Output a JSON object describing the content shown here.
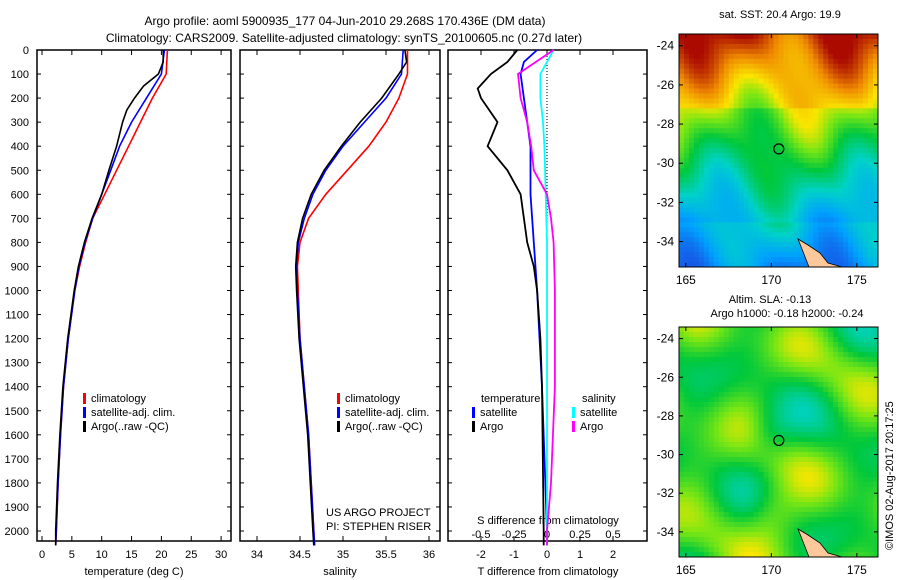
{
  "title_line1": "Argo profile: aoml 5900935_177 04-Jun-2010 29.268S 170.436E (DM data)",
  "title_line2": "Climatology: CARS2009. Satellite-adjusted climatology: synTS_20100605.nc (0.27d later)",
  "colors": {
    "clim": "#ff0000",
    "sat": "#0000ff",
    "argo": "#000000",
    "sal_sat": "#00ffff",
    "sal_argo": "#ff00ff"
  },
  "chart_data": [
    {
      "type": "line",
      "name": "temperature",
      "xlabel": "temperature (deg C)",
      "ylabel": "depth",
      "xlim": [
        -1,
        31
      ],
      "ylim": [
        2070,
        0
      ],
      "xticks": [
        "0",
        "5",
        "10",
        "15",
        "20",
        "25",
        "30"
      ],
      "yticks": [
        "0",
        "100",
        "200",
        "300",
        "400",
        "500",
        "600",
        "700",
        "800",
        "900",
        "1000",
        "1100",
        "1200",
        "1300",
        "1400",
        "1500",
        "1600",
        "1700",
        "1800",
        "1900",
        "2000"
      ],
      "legend": [
        "climatology",
        "satellite-adj. clim.",
        "Argo(..raw -QC)"
      ],
      "series": [
        {
          "name": "climatology",
          "depth": [
            0,
            100,
            200,
            300,
            400,
            500,
            600,
            700,
            800,
            900,
            1000,
            1200,
            1400,
            1600,
            1800,
            2000,
            2060
          ],
          "values": [
            21,
            20.8,
            18.5,
            16.5,
            14.5,
            12.5,
            10.5,
            8.5,
            7.3,
            6.3,
            5.5,
            4.4,
            3.6,
            3.1,
            2.7,
            2.4,
            2.3
          ]
        },
        {
          "name": "satellite-adj. clim.",
          "depth": [
            0,
            100,
            200,
            300,
            400,
            500,
            600,
            700,
            800,
            900,
            1000,
            1200,
            1400,
            1600,
            1800,
            2000,
            2060
          ],
          "values": [
            20.5,
            20,
            17.5,
            15,
            13,
            11.5,
            10,
            8.5,
            7.2,
            6.2,
            5.5,
            4.4,
            3.6,
            3.1,
            2.7,
            2.4,
            2.3
          ]
        },
        {
          "name": "Argo",
          "depth": [
            0,
            50,
            100,
            150,
            200,
            250,
            300,
            400,
            500,
            600,
            700,
            800,
            900,
            1000,
            1200,
            1400,
            1600,
            1800,
            2000,
            2060
          ],
          "values": [
            20.3,
            20.3,
            19.5,
            17,
            15.5,
            14.2,
            13.5,
            12.5,
            11.2,
            10,
            8.4,
            7.1,
            6.1,
            5.4,
            4.3,
            3.5,
            3.0,
            2.6,
            2.3,
            2.3
          ]
        }
      ]
    },
    {
      "type": "line",
      "name": "salinity",
      "xlabel": "salinity",
      "xlim": [
        33.8,
        36.1
      ],
      "ylim": [
        2070,
        0
      ],
      "xticks": [
        "34",
        "34.5",
        "35",
        "35.5",
        "36"
      ],
      "legend": [
        "climatology",
        "satellite-adj. clim.",
        "Argo(..raw -QC)"
      ],
      "annotation": [
        "US ARGO PROJECT",
        "PI: STEPHEN RISER"
      ],
      "series": [
        {
          "name": "climatology",
          "depth": [
            0,
            100,
            200,
            300,
            400,
            500,
            600,
            700,
            800,
            900,
            1000,
            1200,
            1400,
            1600,
            1800,
            2000,
            2060
          ],
          "values": [
            35.75,
            35.75,
            35.65,
            35.5,
            35.3,
            35.05,
            34.8,
            34.6,
            34.5,
            34.47,
            34.48,
            34.5,
            34.55,
            34.6,
            34.63,
            34.66,
            34.67
          ]
        },
        {
          "name": "satellite-adj. clim.",
          "depth": [
            0,
            100,
            200,
            300,
            400,
            500,
            600,
            700,
            800,
            900,
            1000,
            1200,
            1400,
            1600,
            1800,
            2000,
            2060
          ],
          "values": [
            35.7,
            35.68,
            35.5,
            35.25,
            35.0,
            34.8,
            34.65,
            34.55,
            34.48,
            34.46,
            34.47,
            34.5,
            34.55,
            34.6,
            34.63,
            34.66,
            34.67
          ]
        },
        {
          "name": "Argo",
          "depth": [
            0,
            50,
            100,
            200,
            300,
            400,
            500,
            600,
            700,
            800,
            900,
            1000,
            1200,
            1400,
            1600,
            1800,
            2000,
            2060
          ],
          "values": [
            35.72,
            35.74,
            35.65,
            35.45,
            35.2,
            34.98,
            34.78,
            34.63,
            34.53,
            34.47,
            34.45,
            34.46,
            34.49,
            34.54,
            34.59,
            34.62,
            34.65,
            34.66
          ]
        }
      ]
    },
    {
      "type": "line",
      "name": "difference",
      "xlabel": "T difference from climatology",
      "x2label": "S difference from climatology",
      "xlim": [
        -2.5,
        2.5
      ],
      "xticks": [
        "-2",
        "-1",
        "0",
        "1",
        "2"
      ],
      "x2ticks": [
        "-0.5",
        "-0.25",
        "0",
        "0.25",
        "0.5"
      ],
      "legend_t": {
        "title": "temperature",
        "items": [
          "satellite",
          "Argo"
        ]
      },
      "legend_s": {
        "title": "salinity",
        "items": [
          "satellite",
          "Argo"
        ]
      },
      "series": [
        {
          "name": "T satellite",
          "depth": [
            0,
            50,
            100,
            200,
            300,
            400,
            600,
            800,
            1000,
            1400,
            2000,
            2060
          ],
          "values": [
            -0.3,
            -0.7,
            -0.8,
            -0.7,
            -0.6,
            -0.5,
            -0.5,
            -0.4,
            -0.3,
            -0.15,
            0,
            0
          ]
        },
        {
          "name": "T Argo",
          "depth": [
            0,
            50,
            100,
            160,
            200,
            300,
            400,
            500,
            600,
            700,
            800,
            900,
            1000,
            1200,
            1400,
            2000,
            2060
          ],
          "values": [
            -0.9,
            -1.2,
            -1.7,
            -2.1,
            -2.0,
            -1.5,
            -1.8,
            -1.2,
            -0.8,
            -0.7,
            -0.6,
            -0.4,
            -0.3,
            -0.2,
            -0.15,
            -0.1,
            -0.1
          ]
        },
        {
          "name": "S satellite",
          "depth": [
            0,
            100,
            200,
            300,
            400,
            600,
            800,
            1200,
            2000,
            2060
          ],
          "values": [
            0.05,
            -0.05,
            -0.05,
            -0.03,
            -0.02,
            -0.01,
            0,
            0,
            0,
            0
          ]
        },
        {
          "name": "S Argo",
          "depth": [
            0,
            100,
            200,
            300,
            400,
            500,
            600,
            700,
            800,
            1000,
            1400,
            1800,
            2000,
            2060
          ],
          "values": [
            0.05,
            -0.22,
            -0.2,
            -0.15,
            -0.12,
            -0.1,
            0,
            0.03,
            0.05,
            0.06,
            0.06,
            0.03,
            0,
            0
          ]
        }
      ]
    }
  ],
  "map1": {
    "title": "sat. SST: 20.4 Argo: 19.9",
    "xticks": [
      "165",
      "170",
      "175"
    ],
    "yticks": [
      "-24",
      "-26",
      "-28",
      "-30",
      "-32",
      "-34"
    ]
  },
  "map2": {
    "title1": "Altim. SLA: -0.13",
    "title2": "Argo h1000: -0.18 h2000: -0.24",
    "xticks": [
      "165",
      "170",
      "175"
    ],
    "yticks": [
      "-24",
      "-26",
      "-28",
      "-30",
      "-32",
      "-34"
    ]
  },
  "credit": "©IMOS 02-Aug-2017 20:17:25"
}
